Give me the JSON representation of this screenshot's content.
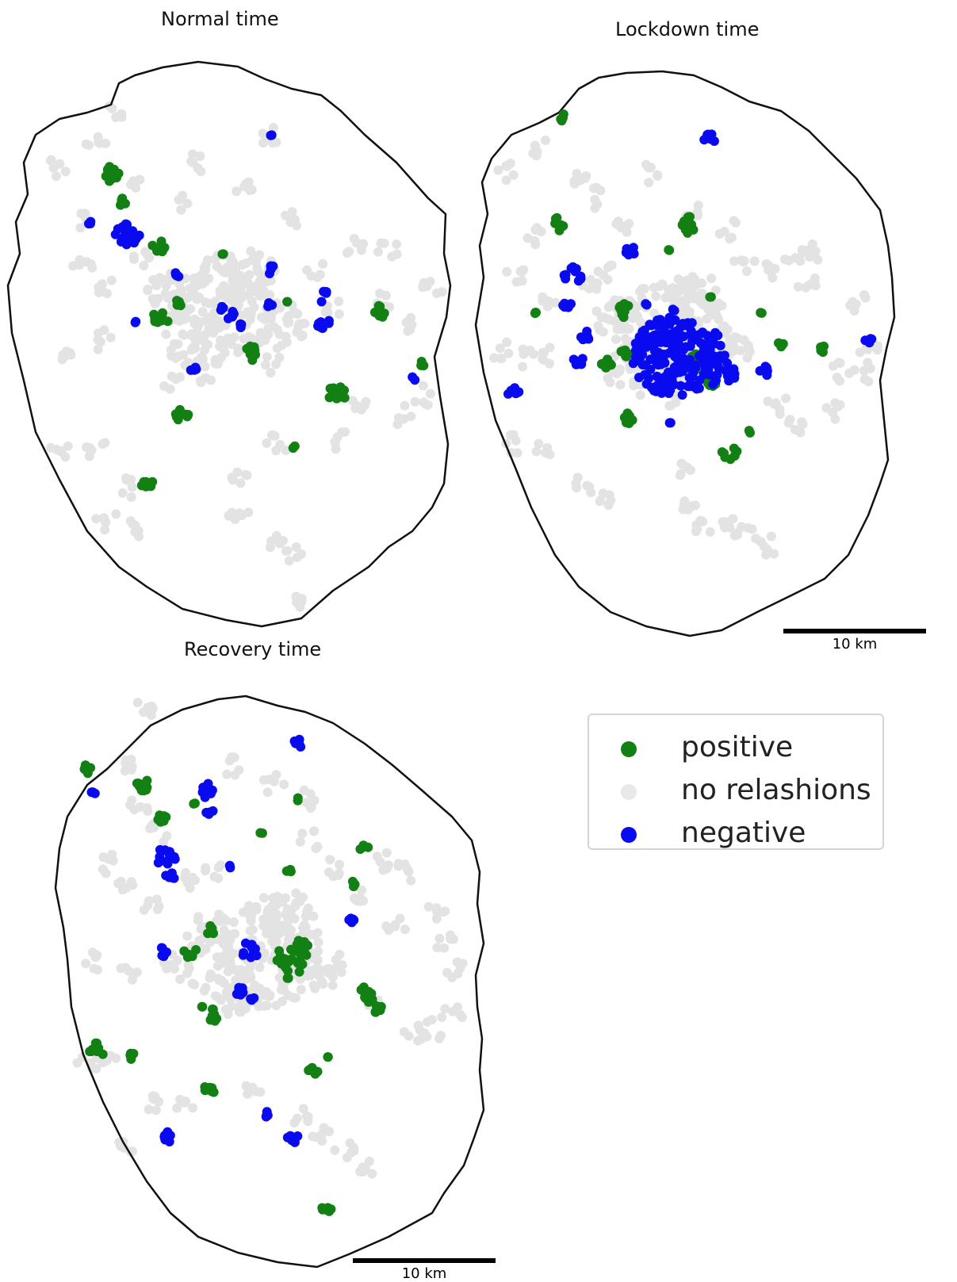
{
  "maps": [
    {
      "id": "normal",
      "title": "Normal time"
    },
    {
      "id": "lockdown",
      "title": "Lockdown time",
      "scale_label": "10 km"
    },
    {
      "id": "recovery",
      "title": "Recovery time",
      "scale_label": "10 km"
    }
  ],
  "legend": {
    "items": [
      {
        "label": "positive",
        "color": "#138013"
      },
      {
        "label": "no relashions",
        "color": "#e3e3e3"
      },
      {
        "label": "negative",
        "color": "#0a0af0"
      }
    ]
  },
  "colors": {
    "positive": "#138013",
    "neutral": "#e3e3e3",
    "negative": "#0a0af0",
    "boundary": "#111111"
  }
}
